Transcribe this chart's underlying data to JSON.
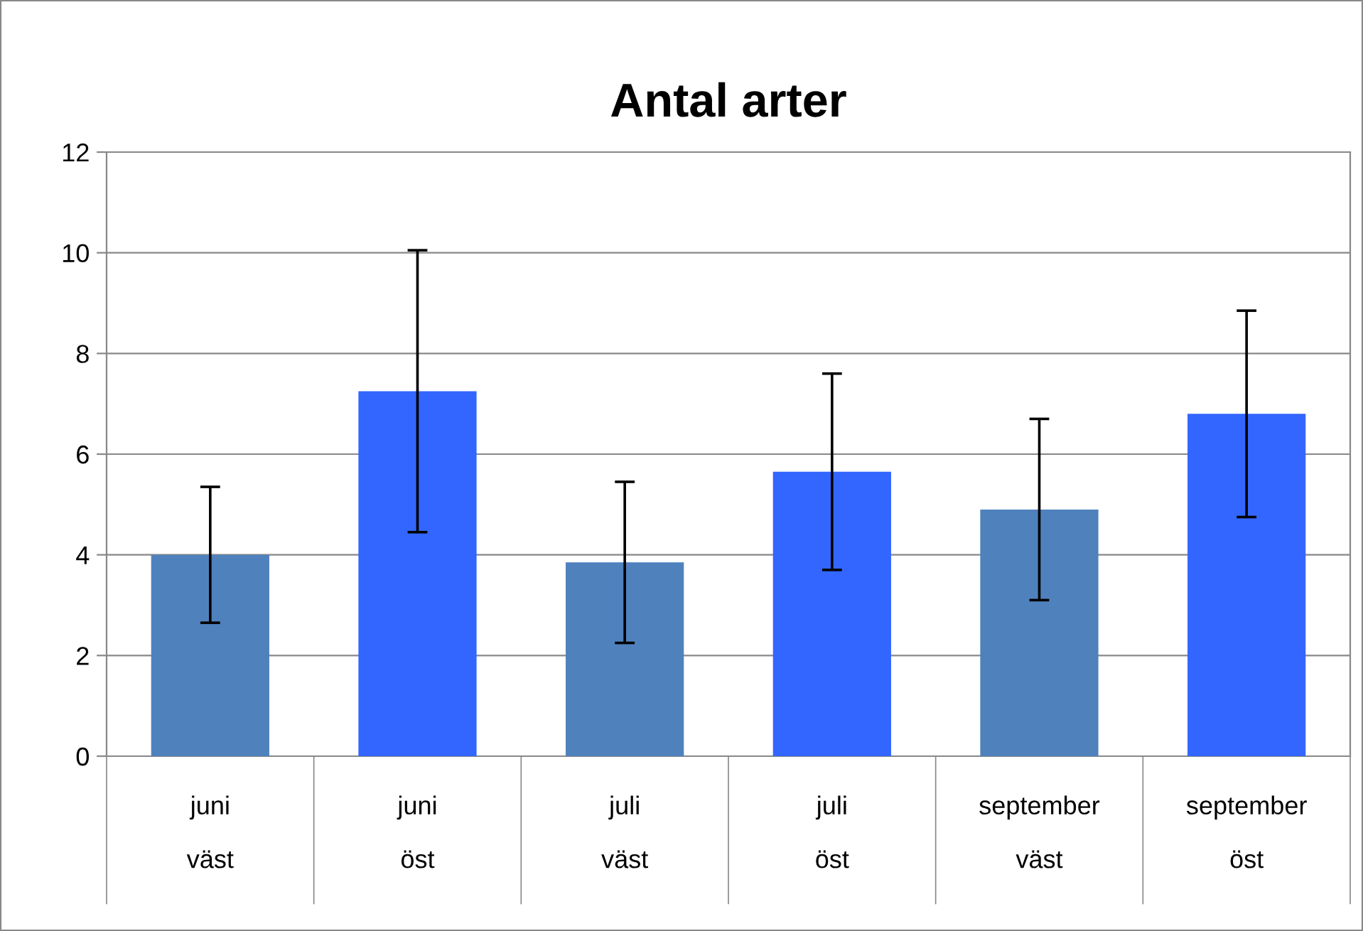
{
  "chart_data": {
    "type": "bar",
    "title": "Antal arter",
    "categories": [
      "juni\nväst",
      "juni\nöst",
      "juli\nväst",
      "juli\nöst",
      "september\nväst",
      "september\nöst"
    ],
    "values": [
      4.0,
      7.25,
      3.85,
      5.65,
      4.9,
      6.8
    ],
    "errors": [
      1.35,
      2.8,
      1.6,
      1.95,
      1.8,
      2.05
    ],
    "colors": [
      "#4f81bd",
      "#3366ff",
      "#4f81bd",
      "#3366ff",
      "#4f81bd",
      "#3366ff"
    ],
    "ylim": [
      0,
      12
    ],
    "yticks": [
      0,
      2,
      4,
      6,
      8,
      10,
      12
    ],
    "grid": "y"
  }
}
